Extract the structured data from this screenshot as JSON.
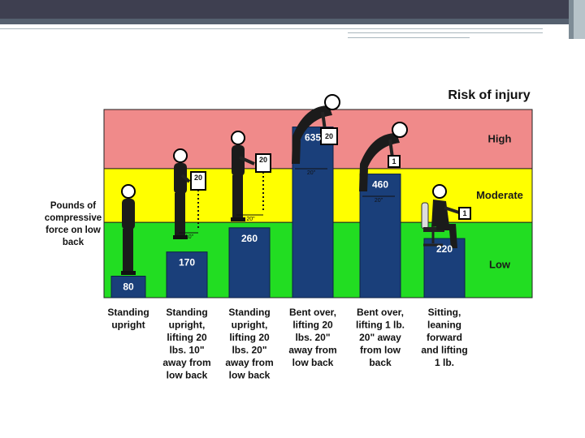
{
  "chart_data": {
    "type": "bar",
    "title": "Risk of injury",
    "ylabel": "Pounds of compressive force on low back",
    "ylabel_lines": [
      "Pounds of",
      "compressive",
      "force on low",
      "back"
    ],
    "ylim": [
      0,
      700
    ],
    "categories": [
      [
        "Standing",
        "upright"
      ],
      [
        "Standing",
        "upright,",
        "lifting 20",
        "lbs. 10\"",
        "away from",
        "low back"
      ],
      [
        "Standing",
        "upright,",
        "lifting 20",
        "lbs. 20\"",
        "away from",
        "low back"
      ],
      [
        "Bent over,",
        "lifting 20",
        "lbs. 20\"",
        "away from",
        "low back"
      ],
      [
        "Bent over,",
        "lifting 1 lb.",
        "20\" away",
        "from low",
        "back"
      ],
      [
        "Sitting,",
        "leaning",
        "forward",
        "and lifting",
        "1 lb."
      ]
    ],
    "values": [
      80,
      170,
      260,
      635,
      460,
      220
    ],
    "zones": [
      {
        "name": "High",
        "from": 480,
        "to": 700,
        "color": "#f08a8a",
        "label_color": "#1a1a1a"
      },
      {
        "name": "Moderate",
        "from": 280,
        "to": 480,
        "color": "#ffff00",
        "label_color": "#1a1a1a"
      },
      {
        "name": "Low",
        "from": 0,
        "to": 280,
        "color": "#22dd22",
        "label_color": "#1a1a1a"
      }
    ],
    "bar_color": "#1a3f7a",
    "distance_marks": [
      "",
      "10\"",
      "20\"",
      "20\"",
      "20\"",
      ""
    ],
    "box_labels": [
      "",
      "20",
      "20",
      "20",
      "1",
      "1"
    ]
  }
}
